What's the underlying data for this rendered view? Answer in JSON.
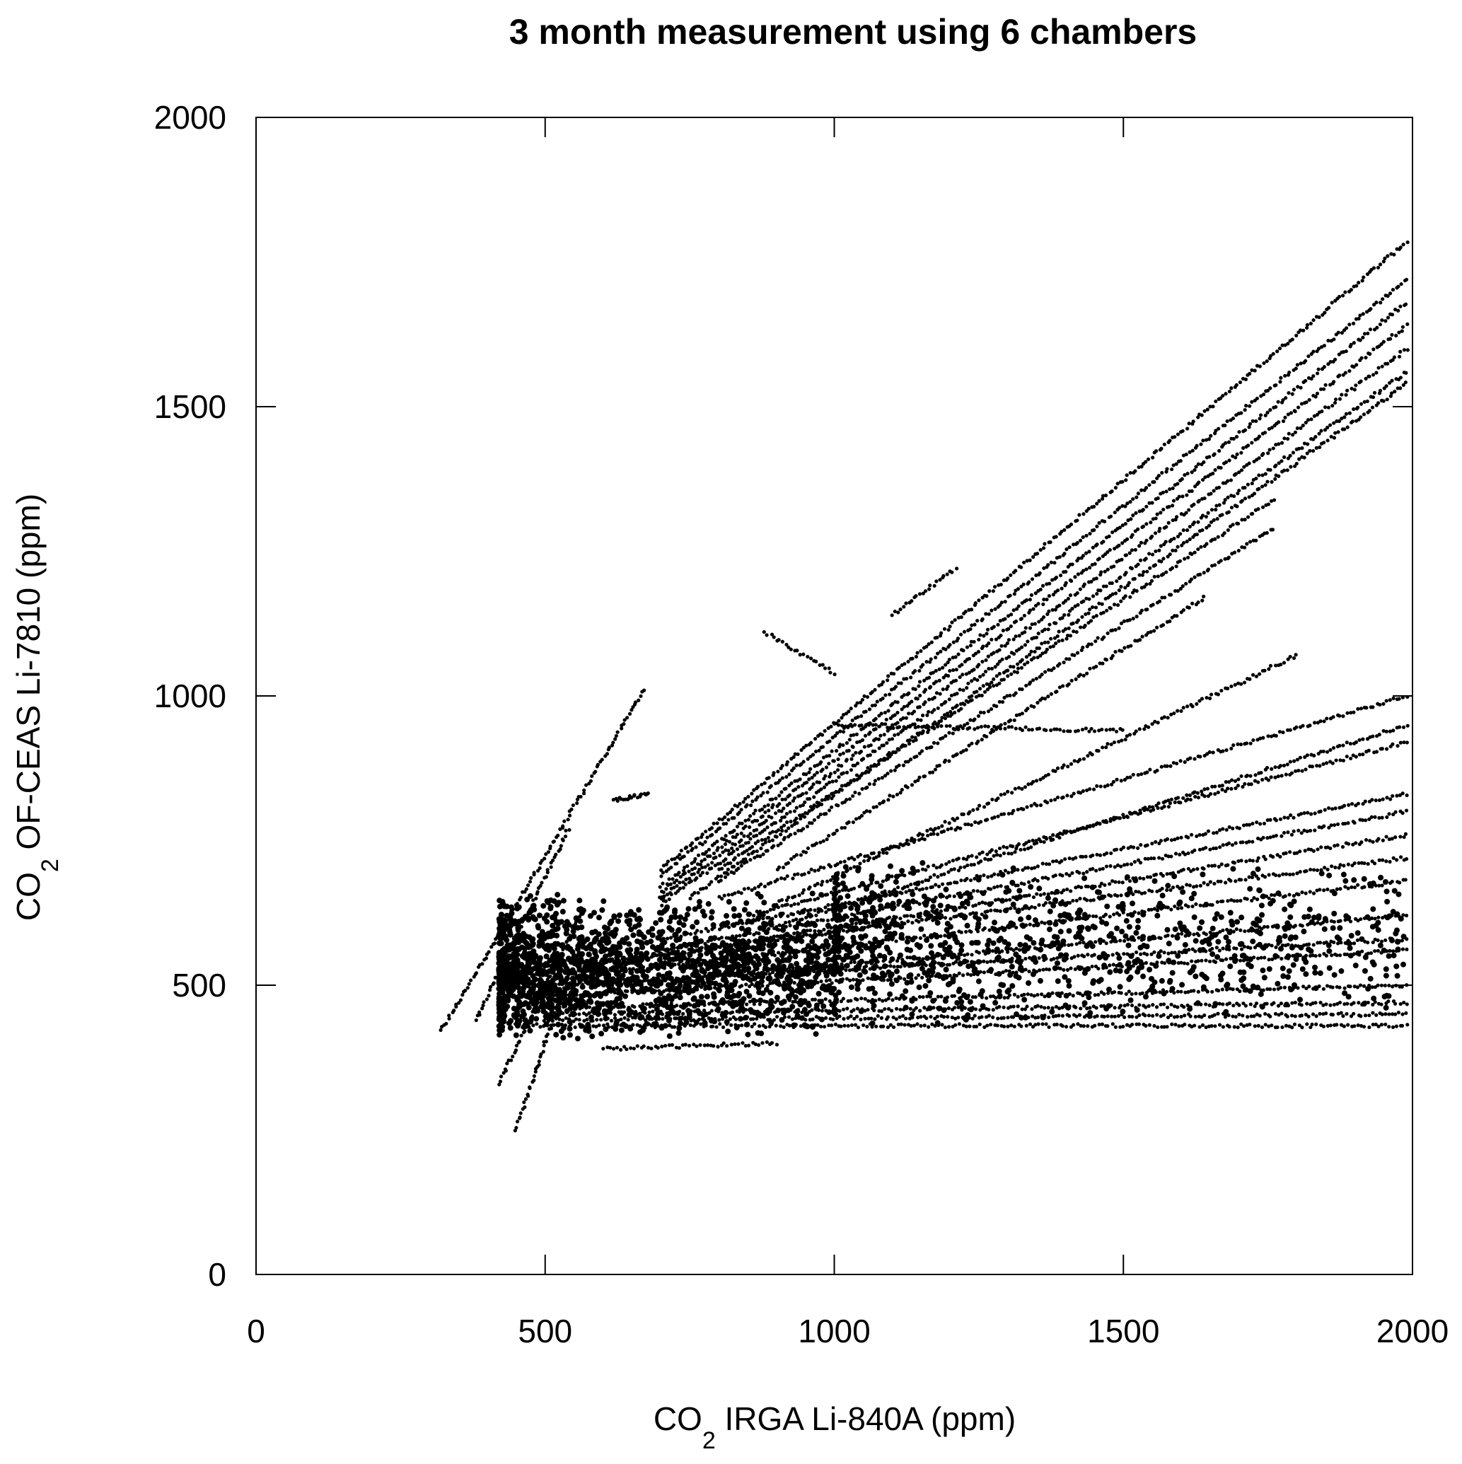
{
  "chart_data": {
    "type": "scatter",
    "title": "3 month measurement using 6 chambers",
    "xlabel": {
      "main": "CO",
      "sub": "2",
      "rest": " IRGA  Li-840A (ppm)"
    },
    "ylabel": {
      "main": "CO",
      "sub": "2",
      "rest": " OF-CEAS Li-7810 (ppm)"
    },
    "xlim": [
      0,
      2000
    ],
    "ylim": [
      0,
      2000
    ],
    "xticks": [
      "0",
      "500",
      "1000",
      "1500",
      "2000"
    ],
    "yticks": [
      "0",
      "500",
      "1000",
      "1500",
      "2000"
    ],
    "grid": false,
    "legend": "none",
    "series_color": "#000000",
    "trend_segments": [
      [
        700,
        700,
        1990,
        1785
      ],
      [
        700,
        690,
        1990,
        1720
      ],
      [
        700,
        670,
        1990,
        1680
      ],
      [
        700,
        660,
        1990,
        1640
      ],
      [
        700,
        650,
        1990,
        1600
      ],
      [
        700,
        640,
        1990,
        1560
      ],
      [
        750,
        650,
        1990,
        1540
      ],
      [
        800,
        700,
        1760,
        1340
      ],
      [
        800,
        680,
        1760,
        1290
      ],
      [
        900,
        700,
        1640,
        1170
      ],
      [
        1100,
        1140,
        1210,
        1220
      ],
      [
        320,
        420,
        670,
        1010
      ],
      [
        450,
        250,
        540,
        520
      ],
      [
        420,
        330,
        560,
        620
      ],
      [
        380,
        440,
        540,
        770
      ],
      [
        800,
        650,
        1990,
        1000
      ],
      [
        900,
        640,
        1800,
        1070
      ],
      [
        900,
        600,
        1990,
        950
      ],
      [
        850,
        620,
        1990,
        920
      ],
      [
        700,
        580,
        1990,
        830
      ],
      [
        700,
        560,
        1990,
        800
      ],
      [
        700,
        550,
        1990,
        760
      ],
      [
        600,
        540,
        1990,
        720
      ],
      [
        600,
        520,
        1990,
        680
      ],
      [
        600,
        500,
        1990,
        620
      ],
      [
        500,
        500,
        1990,
        580
      ],
      [
        500,
        480,
        1990,
        560
      ],
      [
        500,
        460,
        1990,
        500
      ],
      [
        500,
        450,
        1990,
        470
      ],
      [
        500,
        440,
        1990,
        450
      ],
      [
        450,
        430,
        1990,
        430
      ],
      [
        600,
        390,
        900,
        400
      ],
      [
        880,
        1110,
        1000,
        1040
      ],
      [
        620,
        820,
        680,
        830
      ],
      [
        1000,
        950,
        1500,
        940
      ]
    ],
    "dense_clusters": [
      {
        "x": [
          420,
          1000
        ],
        "y": [
          400,
          660
        ],
        "n": 1800
      },
      {
        "x": [
          1000,
          1990
        ],
        "y": [
          430,
          720
        ],
        "n": 900
      }
    ]
  }
}
